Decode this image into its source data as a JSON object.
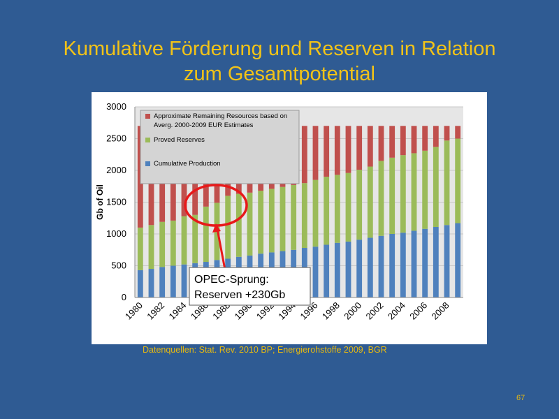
{
  "slide": {
    "title_line1": "Kumulative Förderung und Reserven in Relation",
    "title_line2": "zum Gesamtpotential",
    "source": "Datenquellen: Stat. Rev. 2010 BP; Energierohstoffe 2009, BGR",
    "page_number": "67"
  },
  "annotation": {
    "line1": "OPEC-Sprung:",
    "line2": "Reserven +230Gb",
    "highlight_color": "#e8191a"
  },
  "colors": {
    "production": "#4f81bd",
    "reserves": "#9bbb59",
    "remaining": "#c0504d",
    "plot_bg": "#e6e6e6",
    "title": "#f2c318",
    "background": "#2f5b93"
  },
  "chart_data": {
    "type": "bar",
    "stacked": true,
    "ylabel": "Gb of Oil",
    "ylim": [
      0,
      3000
    ],
    "yticks": [
      0,
      500,
      1000,
      1500,
      2000,
      2500,
      3000
    ],
    "grid": true,
    "legend_position": "top-left",
    "categories": [
      "1980",
      "1981",
      "1982",
      "1983",
      "1984",
      "1985",
      "1986",
      "1987",
      "1988",
      "1989",
      "1990",
      "1991",
      "1992",
      "1993",
      "1994",
      "1995",
      "1996",
      "1997",
      "1998",
      "1999",
      "2000",
      "2001",
      "2002",
      "2003",
      "2004",
      "2005",
      "2006",
      "2007",
      "2008",
      "2009"
    ],
    "tick_labels": [
      "1980",
      "1982",
      "1984",
      "1986",
      "1988",
      "1990",
      "1992",
      "1994",
      "1996",
      "1998",
      "2000",
      "2002",
      "2004",
      "2006",
      "2008"
    ],
    "series": [
      {
        "name": "Cumulative Production",
        "color": "#4f81bd",
        "values": [
          430,
          450,
          480,
          500,
          520,
          540,
          560,
          590,
          610,
          640,
          660,
          690,
          710,
          730,
          750,
          780,
          800,
          830,
          860,
          880,
          910,
          940,
          970,
          1000,
          1020,
          1050,
          1080,
          1110,
          1140,
          1170
        ]
      },
      {
        "name": "Proved Reserves",
        "color": "#9bbb59",
        "values": [
          670,
          690,
          710,
          710,
          760,
          760,
          870,
          900,
          990,
          990,
          990,
          990,
          1000,
          1010,
          1020,
          1020,
          1050,
          1070,
          1070,
          1080,
          1100,
          1120,
          1180,
          1200,
          1220,
          1220,
          1230,
          1260,
          1330,
          1330
        ]
      },
      {
        "name": "Approximate Remaining Resources based on Averg. 2000-2009 EUR Estimates",
        "color": "#c0504d",
        "values": [
          1600,
          1560,
          1510,
          1490,
          1420,
          1400,
          1270,
          1210,
          1100,
          1070,
          1050,
          1020,
          990,
          960,
          930,
          900,
          850,
          800,
          770,
          740,
          690,
          640,
          550,
          500,
          460,
          430,
          390,
          330,
          230,
          200
        ]
      }
    ]
  }
}
